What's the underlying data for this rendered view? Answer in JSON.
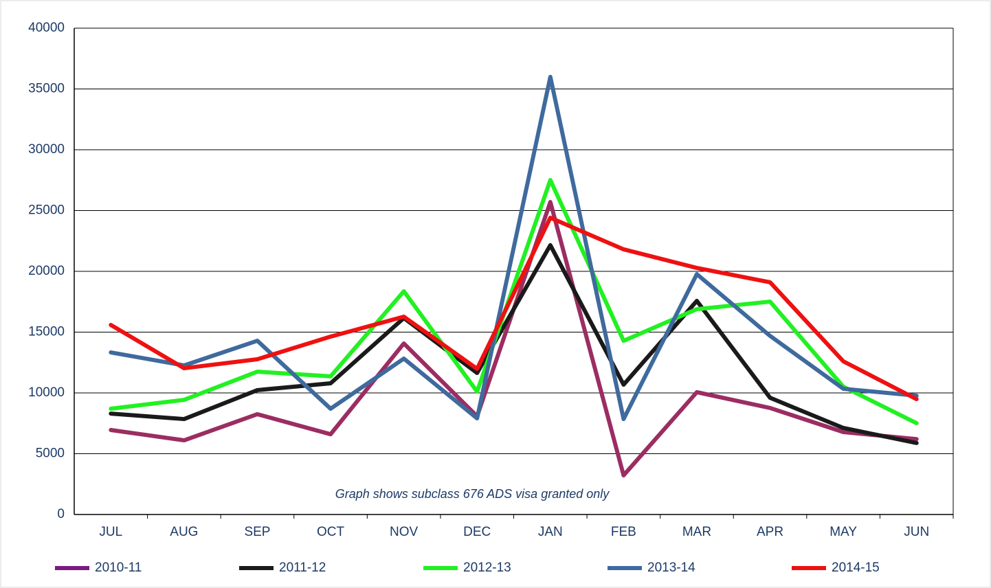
{
  "chart_data": {
    "type": "line",
    "annotation": "Graph shows subclass 676 ADS visa granted only",
    "categories": [
      "JUL",
      "AUG",
      "SEP",
      "OCT",
      "NOV",
      "DEC",
      "JAN",
      "FEB",
      "MAR",
      "APR",
      "MAY",
      "JUN"
    ],
    "ylim": [
      0,
      40000
    ],
    "yticks": [
      0,
      5000,
      10000,
      15000,
      20000,
      25000,
      30000,
      35000,
      40000
    ],
    "grid": true,
    "legend": "bottom",
    "series": [
      {
        "name": "2010-11",
        "color": "#9b2d62",
        "legend_color": "#7b1a80",
        "values": [
          6950,
          6100,
          8250,
          6600,
          14070,
          8080,
          25700,
          3220,
          10060,
          8760,
          6780,
          6200
        ]
      },
      {
        "name": "2011-12",
        "color": "#1a1a1a",
        "values": [
          8300,
          7850,
          10230,
          10790,
          16160,
          11640,
          22150,
          10680,
          17570,
          9600,
          7120,
          5880
        ]
      },
      {
        "name": "2012-13",
        "color": "#22f022",
        "values": [
          8700,
          9430,
          11750,
          11360,
          18360,
          10110,
          27510,
          14290,
          16890,
          17510,
          10510,
          7510
        ]
      },
      {
        "name": "2013-14",
        "color": "#3f6a9d",
        "values": [
          13330,
          12260,
          14290,
          8700,
          12820,
          7910,
          35990,
          7850,
          19770,
          14690,
          10340,
          9770
        ]
      },
      {
        "name": "2014-15",
        "color": "#ee1111",
        "values": [
          15590,
          12030,
          12770,
          14630,
          16270,
          11980,
          24410,
          21810,
          20280,
          19100,
          12600,
          9490
        ]
      }
    ]
  }
}
